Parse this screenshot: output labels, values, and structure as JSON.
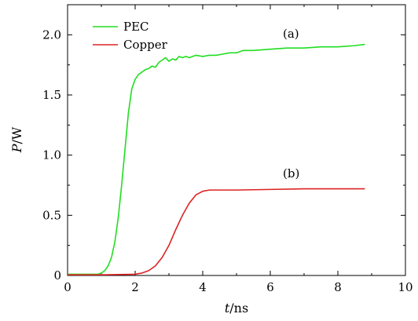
{
  "chart_data": {
    "type": "line",
    "xlabel": {
      "var": "t",
      "unit": "/ns"
    },
    "ylabel": {
      "var": "P",
      "unit": "/W"
    },
    "xlim": [
      0,
      10
    ],
    "ylim": [
      0,
      2.25
    ],
    "xticks": [
      0,
      2,
      4,
      6,
      8,
      10
    ],
    "xtick_labels": [
      "0",
      "2",
      "4",
      "6",
      "8",
      "10"
    ],
    "yticks": [
      0,
      0.5,
      1.0,
      1.5,
      2.0
    ],
    "ytick_labels": [
      "0",
      "0.5",
      "1.0",
      "1.5",
      "2.0"
    ],
    "legend_position": "top-left",
    "grid": false,
    "annotations": [
      {
        "text": "(a)",
        "x": 6.7,
        "y": 2.0
      },
      {
        "text": "(b)",
        "x": 6.7,
        "y": 0.72
      }
    ],
    "series": [
      {
        "name": "PEC",
        "color": "#22dd22",
        "x": [
          0,
          0.5,
          0.9,
          1.0,
          1.1,
          1.2,
          1.3,
          1.4,
          1.5,
          1.6,
          1.7,
          1.8,
          1.9,
          2.0,
          2.1,
          2.2,
          2.3,
          2.4,
          2.5,
          2.6,
          2.7,
          2.8,
          2.9,
          3.0,
          3.1,
          3.2,
          3.3,
          3.4,
          3.5,
          3.6,
          3.8,
          4.0,
          4.2,
          4.4,
          4.6,
          4.8,
          5.0,
          5.2,
          5.5,
          6.0,
          6.5,
          7.0,
          7.5,
          8.0,
          8.5,
          8.8
        ],
        "y": [
          0.01,
          0.01,
          0.01,
          0.02,
          0.04,
          0.08,
          0.15,
          0.28,
          0.48,
          0.75,
          1.05,
          1.35,
          1.55,
          1.63,
          1.67,
          1.69,
          1.71,
          1.72,
          1.74,
          1.73,
          1.77,
          1.79,
          1.81,
          1.78,
          1.8,
          1.79,
          1.82,
          1.81,
          1.82,
          1.81,
          1.83,
          1.82,
          1.83,
          1.83,
          1.84,
          1.85,
          1.85,
          1.87,
          1.87,
          1.88,
          1.89,
          1.89,
          1.9,
          1.9,
          1.91,
          1.92
        ]
      },
      {
        "name": "Copper",
        "color": "#dd2222",
        "x": [
          0,
          1.0,
          2.0,
          2.2,
          2.4,
          2.6,
          2.8,
          3.0,
          3.2,
          3.4,
          3.6,
          3.8,
          4.0,
          4.2,
          4.5,
          5.0,
          6.0,
          7.0,
          8.0,
          8.8
        ],
        "y": [
          0.005,
          0.005,
          0.01,
          0.02,
          0.04,
          0.08,
          0.15,
          0.25,
          0.38,
          0.5,
          0.6,
          0.67,
          0.7,
          0.71,
          0.71,
          0.71,
          0.715,
          0.72,
          0.72,
          0.72
        ]
      }
    ]
  }
}
